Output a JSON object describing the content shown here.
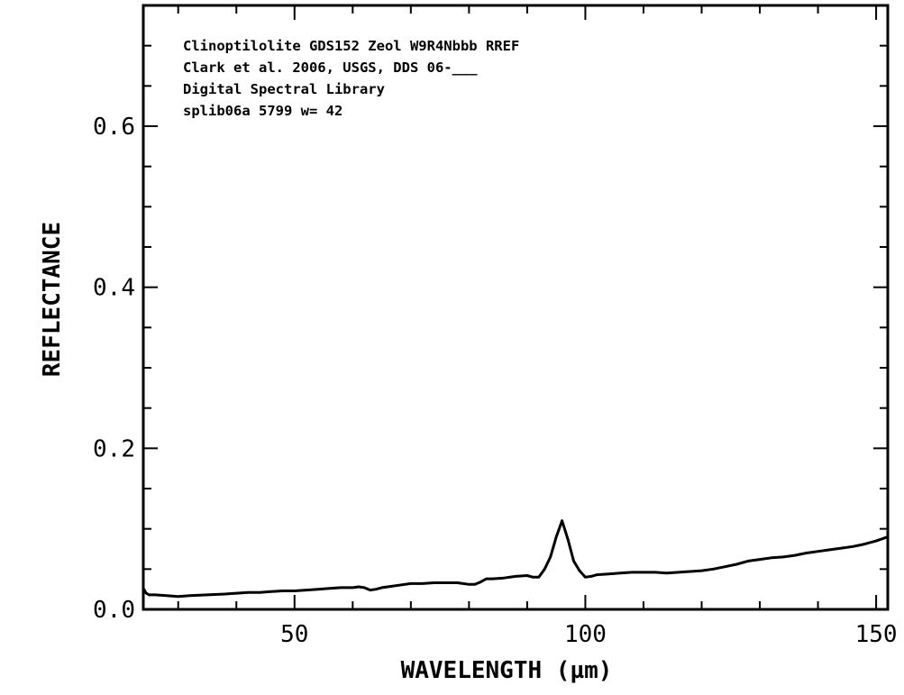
{
  "chart_data": {
    "type": "line",
    "title": "",
    "xlabel": "WAVELENGTH (µm)",
    "ylabel": "REFLECTANCE",
    "xlim": [
      24,
      152
    ],
    "ylim": [
      0,
      0.75
    ],
    "x_ticks": [
      50,
      100,
      150
    ],
    "x_tick_labels": [
      "50",
      "100",
      "150"
    ],
    "y_ticks": [
      0,
      0.2,
      0.4,
      0.6
    ],
    "y_tick_labels": [
      "0.0",
      "0.2",
      "0.4",
      "0.6"
    ],
    "grid": false,
    "legend": "none",
    "annotations": [
      "Clinoptilolite GDS152 Zeol W9R4Nbbb RREF",
      "Clark et al. 2006, USGS, DDS 06-___",
      "Digital Spectral Library",
      "splib06a 5799 w= 42"
    ],
    "series": [
      {
        "color": "#000000",
        "x": [
          24,
          24.5,
          25,
          26,
          28,
          30,
          32,
          35,
          38,
          40,
          42,
          44,
          46,
          48,
          50,
          52,
          54,
          56,
          58,
          60,
          61,
          62,
          63,
          64,
          65,
          66,
          68,
          70,
          72,
          74,
          76,
          78,
          80,
          81,
          82,
          83,
          84,
          86,
          88,
          90,
          91,
          92,
          93,
          94,
          95,
          96,
          97,
          98,
          99,
          100,
          101,
          102,
          104,
          106,
          108,
          110,
          112,
          114,
          116,
          118,
          120,
          122,
          124,
          126,
          128,
          130,
          132,
          134,
          136,
          138,
          140,
          142,
          144,
          146,
          148,
          150,
          152
        ],
        "y": [
          0.026,
          0.02,
          0.018,
          0.018,
          0.017,
          0.016,
          0.017,
          0.018,
          0.019,
          0.02,
          0.021,
          0.021,
          0.022,
          0.023,
          0.023,
          0.024,
          0.025,
          0.026,
          0.027,
          0.027,
          0.028,
          0.027,
          0.024,
          0.025,
          0.027,
          0.028,
          0.03,
          0.032,
          0.032,
          0.033,
          0.033,
          0.033,
          0.031,
          0.031,
          0.034,
          0.038,
          0.038,
          0.039,
          0.041,
          0.042,
          0.04,
          0.04,
          0.05,
          0.065,
          0.09,
          0.11,
          0.087,
          0.06,
          0.048,
          0.04,
          0.041,
          0.043,
          0.044,
          0.045,
          0.046,
          0.046,
          0.046,
          0.045,
          0.046,
          0.047,
          0.048,
          0.05,
          0.053,
          0.056,
          0.06,
          0.062,
          0.064,
          0.065,
          0.067,
          0.07,
          0.072,
          0.074,
          0.076,
          0.078,
          0.081,
          0.085,
          0.09
        ]
      }
    ]
  }
}
